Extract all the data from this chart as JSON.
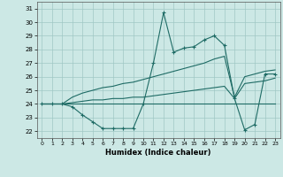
{
  "xlabel": "Humidex (Indice chaleur)",
  "background_color": "#cce8e5",
  "grid_color": "#a0c8c4",
  "line_color": "#1e6b65",
  "xlim": [
    -0.5,
    23.5
  ],
  "ylim": [
    21.5,
    31.5
  ],
  "yticks": [
    22,
    23,
    24,
    25,
    26,
    27,
    28,
    29,
    30,
    31
  ],
  "xticks": [
    0,
    1,
    2,
    3,
    4,
    5,
    6,
    7,
    8,
    9,
    10,
    11,
    12,
    13,
    14,
    15,
    16,
    17,
    18,
    19,
    20,
    21,
    22,
    23
  ],
  "line_main": [
    24,
    24,
    24,
    23.8,
    23.2,
    22.7,
    22.2,
    22.2,
    22.2,
    22.2,
    24,
    27,
    30.7,
    27.8,
    28.1,
    28.2,
    28.7,
    29.0,
    28.3,
    24.4,
    22.1,
    22.5,
    26.2,
    26.2
  ],
  "line_upper": [
    24,
    24,
    24,
    24.5,
    24.8,
    25.0,
    25.2,
    25.3,
    25.5,
    25.6,
    25.8,
    26.0,
    26.2,
    26.4,
    26.6,
    26.8,
    27.0,
    27.3,
    27.5,
    24.5,
    26.0,
    26.2,
    26.4,
    26.5
  ],
  "line_lower": [
    24,
    24,
    24,
    24.1,
    24.2,
    24.3,
    24.3,
    24.4,
    24.4,
    24.5,
    24.5,
    24.6,
    24.7,
    24.8,
    24.9,
    25.0,
    25.1,
    25.2,
    25.3,
    24.4,
    25.5,
    25.6,
    25.7,
    25.9
  ],
  "line_flat": [
    24,
    24,
    24,
    24,
    24,
    24,
    24,
    24,
    24,
    24,
    24,
    24,
    24,
    24,
    24,
    24,
    24,
    24,
    24,
    24,
    24,
    24,
    24,
    24
  ]
}
